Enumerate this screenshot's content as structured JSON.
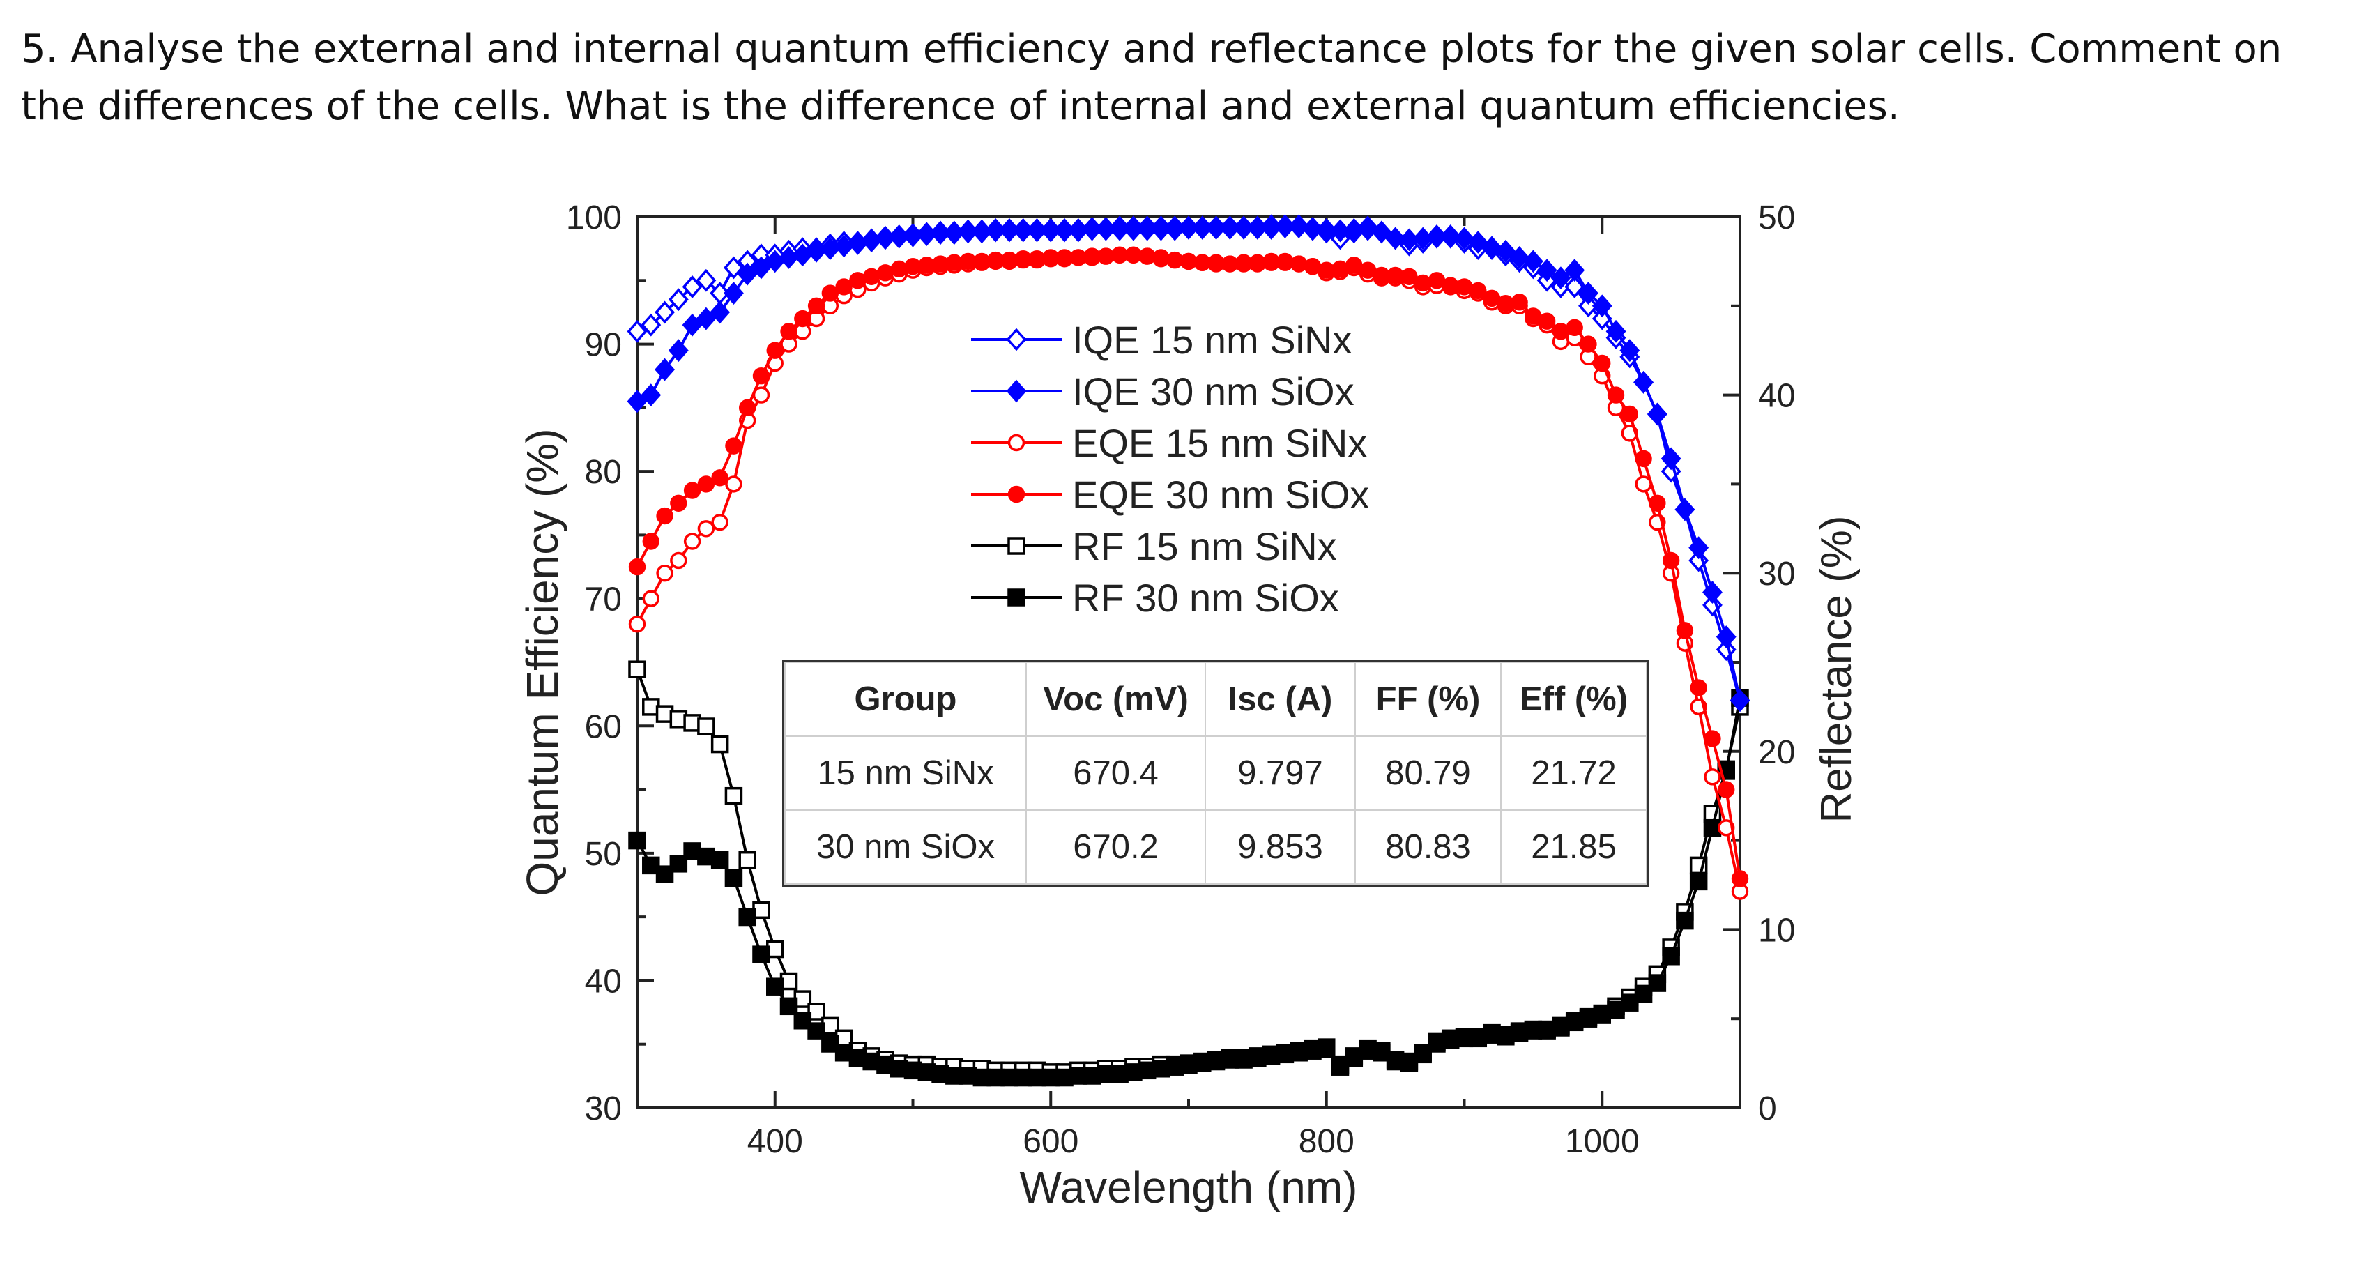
{
  "question": "5. Analyse the  external and internal quantum efficiency and reflectance plots for the given solar cells. Comment on the differences of the cells. What is the difference of internal and external quantum efficiencies.",
  "chart_data": {
    "type": "line",
    "xlabel": "Wavelength (nm)",
    "ylabel": "Quantum Efficiency (%)",
    "y2label": "Reflectance (%)",
    "xlim": [
      300,
      1100
    ],
    "ylim": [
      30,
      100
    ],
    "y2lim": [
      0,
      50
    ],
    "xticks": [
      400,
      600,
      800,
      1000
    ],
    "yticks": [
      30,
      40,
      50,
      60,
      70,
      80,
      90,
      100
    ],
    "y2ticks": [
      0,
      10,
      20,
      30,
      40,
      50
    ],
    "grid": false,
    "legend_placement": "top-center",
    "x": [
      300,
      310,
      320,
      330,
      340,
      350,
      360,
      370,
      380,
      390,
      400,
      410,
      420,
      430,
      440,
      450,
      460,
      470,
      480,
      490,
      500,
      510,
      520,
      530,
      540,
      550,
      560,
      570,
      580,
      590,
      600,
      610,
      620,
      630,
      640,
      650,
      660,
      670,
      680,
      690,
      700,
      710,
      720,
      730,
      740,
      750,
      760,
      770,
      780,
      790,
      800,
      810,
      820,
      830,
      840,
      850,
      860,
      870,
      880,
      890,
      900,
      910,
      920,
      930,
      940,
      950,
      960,
      970,
      980,
      990,
      1000,
      1010,
      1020,
      1030,
      1040,
      1050,
      1060,
      1070,
      1080,
      1090,
      1100
    ],
    "series": [
      {
        "name": "IQE 15 nm SiNx",
        "axis": "left",
        "color": "#0000ff",
        "marker": "diamond-open",
        "values": [
          91,
          91.5,
          92.5,
          93.5,
          94.5,
          95,
          94,
          96,
          96.5,
          97,
          97,
          97.3,
          97.5,
          97.5,
          97.8,
          98,
          98,
          98.2,
          98.4,
          98.5,
          98.6,
          98.7,
          98.8,
          98.8,
          98.9,
          98.9,
          99,
          99,
          99,
          99,
          99,
          99,
          99,
          99.1,
          99.1,
          99.2,
          99.2,
          99.2,
          99.2,
          99.2,
          99.2,
          99.2,
          99.2,
          99.2,
          99.2,
          99.2,
          99.3,
          99.3,
          99.3,
          99,
          98.8,
          98.3,
          98.8,
          99.2,
          98.8,
          98.3,
          97.8,
          98,
          98.4,
          98.4,
          98,
          97.5,
          97.5,
          97,
          96.5,
          96,
          95,
          94.5,
          94.5,
          93,
          92,
          90.5,
          89,
          87,
          84.5,
          80,
          77,
          73,
          69.5,
          66,
          62
        ]
      },
      {
        "name": "IQE 30 nm SiOx",
        "axis": "left",
        "color": "#0000ff",
        "marker": "diamond-filled",
        "values": [
          85.5,
          86,
          88,
          89.5,
          91.5,
          92,
          92.5,
          94,
          95.5,
          96,
          96.5,
          96.8,
          97,
          97.3,
          97.5,
          97.7,
          97.9,
          98.1,
          98.3,
          98.4,
          98.5,
          98.6,
          98.7,
          98.7,
          98.8,
          98.8,
          98.9,
          98.9,
          98.9,
          98.9,
          98.9,
          98.9,
          98.9,
          99,
          99,
          99,
          99,
          99,
          99,
          99,
          99.1,
          99.1,
          99.1,
          99.1,
          99.1,
          99.1,
          99.1,
          99.2,
          99.2,
          99.1,
          99,
          98.9,
          99,
          99,
          98.8,
          98.3,
          98.2,
          98.3,
          98.5,
          98.5,
          98.3,
          98,
          97.6,
          97.3,
          96.8,
          96.5,
          95.8,
          95.2,
          95.8,
          94,
          93,
          91,
          89.5,
          87,
          84.5,
          81,
          77,
          74,
          70.5,
          67,
          62
        ]
      },
      {
        "name": "EQE 15 nm SiNx",
        "axis": "left",
        "color": "#ff0000",
        "marker": "circle-open",
        "values": [
          68,
          70,
          72,
          73,
          74.5,
          75.5,
          76,
          79,
          84,
          86,
          88.5,
          90,
          91,
          92,
          93,
          93.8,
          94.3,
          94.8,
          95.2,
          95.5,
          95.8,
          96,
          96.1,
          96.2,
          96.3,
          96.4,
          96.5,
          96.5,
          96.6,
          96.6,
          96.7,
          96.7,
          96.8,
          96.8,
          96.9,
          97,
          97,
          96.9,
          96.7,
          96.6,
          96.5,
          96.4,
          96.3,
          96.3,
          96.3,
          96.3,
          96.4,
          96.4,
          96.3,
          96.1,
          95.6,
          95.7,
          96,
          95.5,
          95.2,
          95.2,
          95,
          94.5,
          94.6,
          94.5,
          94.2,
          94,
          93.3,
          93,
          93,
          92,
          91.5,
          90.2,
          90.5,
          89,
          87.5,
          85,
          83,
          79,
          76,
          72,
          66.5,
          61.5,
          56,
          52,
          47
        ]
      },
      {
        "name": "EQE 30 nm SiOx",
        "axis": "left",
        "color": "#ff0000",
        "marker": "circle-filled",
        "values": [
          72.5,
          74.5,
          76.5,
          77.5,
          78.5,
          79,
          79.5,
          82,
          85,
          87.5,
          89.5,
          91,
          92,
          93,
          94,
          94.5,
          95,
          95.3,
          95.6,
          95.9,
          96.1,
          96.2,
          96.3,
          96.4,
          96.5,
          96.5,
          96.6,
          96.6,
          96.7,
          96.7,
          96.8,
          96.8,
          96.8,
          96.9,
          96.9,
          97,
          97,
          96.9,
          96.8,
          96.6,
          96.5,
          96.4,
          96.4,
          96.3,
          96.4,
          96.4,
          96.5,
          96.5,
          96.3,
          96.1,
          95.8,
          95.9,
          96.2,
          95.8,
          95.4,
          95.4,
          95.3,
          94.8,
          95,
          94.6,
          94.5,
          94.2,
          93.6,
          93.2,
          93.3,
          92.2,
          91.8,
          91,
          91.3,
          90,
          88.5,
          86,
          84.5,
          81,
          77.5,
          73,
          67.5,
          63,
          59,
          55,
          48
        ]
      },
      {
        "name": "RF 15 nm SiNx",
        "axis": "right",
        "color": "#000000",
        "marker": "square-open",
        "values": [
          24.6,
          22.5,
          22.1,
          21.8,
          21.6,
          21.4,
          20.4,
          17.5,
          13.9,
          11.1,
          8.9,
          7.1,
          6.1,
          5.4,
          4.6,
          3.9,
          3.2,
          2.9,
          2.7,
          2.5,
          2.4,
          2.4,
          2.3,
          2.3,
          2.2,
          2.2,
          2.1,
          2.1,
          2.1,
          2.1,
          2.0,
          2.0,
          2.1,
          2.1,
          2.2,
          2.2,
          2.3,
          2.3,
          2.4,
          2.4,
          2.5,
          2.6,
          2.7,
          2.8,
          2.8,
          2.9,
          3.0,
          3.1,
          3.2,
          3.3,
          3.4,
          2.4,
          2.9,
          3.3,
          3.2,
          2.7,
          2.6,
          3.1,
          3.7,
          3.9,
          4.0,
          4.0,
          4.2,
          4.1,
          4.3,
          4.4,
          4.4,
          4.6,
          4.9,
          5.1,
          5.3,
          5.7,
          6.2,
          6.8,
          7.5,
          9.0,
          11.0,
          13.6,
          16.5,
          19.0,
          22.5
        ]
      },
      {
        "name": "RF 30 nm SiOx",
        "axis": "right",
        "color": "#000000",
        "marker": "square-filled",
        "values": [
          15,
          13.6,
          13.1,
          13.7,
          14.4,
          14.1,
          13.9,
          12.9,
          10.7,
          8.6,
          6.8,
          5.7,
          4.9,
          4.3,
          3.6,
          3.1,
          2.8,
          2.6,
          2.4,
          2.2,
          2.1,
          2.0,
          1.9,
          1.8,
          1.8,
          1.7,
          1.7,
          1.7,
          1.7,
          1.7,
          1.7,
          1.7,
          1.8,
          1.8,
          1.9,
          1.9,
          2.0,
          2.1,
          2.2,
          2.3,
          2.4,
          2.5,
          2.6,
          2.7,
          2.7,
          2.8,
          2.9,
          3.0,
          3.1,
          3.2,
          3.3,
          2.3,
          2.8,
          3.2,
          3.1,
          2.6,
          2.5,
          3.0,
          3.6,
          3.8,
          3.9,
          3.9,
          4.1,
          4.0,
          4.2,
          4.3,
          4.3,
          4.5,
          4.8,
          5.0,
          5.2,
          5.5,
          5.9,
          6.4,
          7.0,
          8.5,
          10.5,
          12.7,
          15.7,
          18.9,
          23
        ]
      }
    ],
    "table": {
      "headers": [
        "Group",
        "Voc (mV)",
        "Isc (A)",
        "FF (%)",
        "Eff (%)"
      ],
      "rows": [
        [
          "15 nm SiNx",
          "670.4",
          "9.797",
          "80.79",
          "21.72"
        ],
        [
          "30 nm SiOx",
          "670.2",
          "9.853",
          "80.83",
          "21.85"
        ]
      ]
    }
  }
}
